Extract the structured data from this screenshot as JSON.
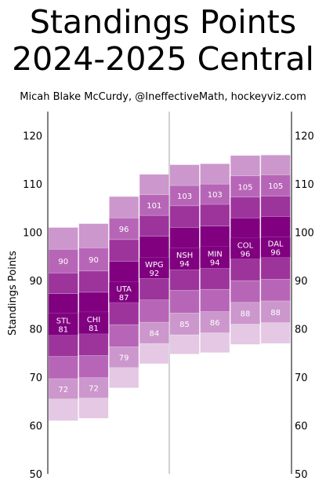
{
  "title_line1": "Standings Points",
  "title_line2": "2024-2025 Central",
  "subtitle": "Micah Blake McCurdy, @IneffectiveMath, hockeyviz.com",
  "chart_data": {
    "type": "bar",
    "ylabel": "Standings Points",
    "ylim": [
      50,
      125
    ],
    "yticks": [
      50,
      60,
      70,
      80,
      90,
      100,
      110,
      120
    ],
    "colors": {
      "band_outer": "#e4c8e4",
      "band_2": "#cc97cc",
      "band_3": "#b766b7",
      "band_4": "#9c349c",
      "median": "#800080",
      "divider": "#d0d0d0"
    },
    "teams": [
      {
        "team": "STL",
        "median": 81,
        "p10": 72,
        "p90": 90,
        "bands": [
          61,
          65.5,
          69.7,
          74.3,
          78.7,
          83.3,
          87.3,
          91.6,
          96.5,
          101
        ]
      },
      {
        "team": "CHI",
        "median": 81,
        "p10": 72,
        "p90": 90,
        "bands": [
          61.5,
          65.7,
          69.9,
          74.5,
          79,
          83.5,
          87.6,
          92,
          96.8,
          101.8
        ]
      },
      {
        "team": "UTA",
        "median": 87,
        "p10": 79,
        "p90": 96,
        "bands": [
          67.8,
          72,
          76.3,
          80.9,
          85.5,
          89.7,
          94,
          98.5,
          103,
          107.4
        ]
      },
      {
        "team": "WPG",
        "median": 92,
        "p10": 84,
        "p90": 101,
        "bands": [
          72.8,
          77,
          81.4,
          86,
          90.5,
          94.8,
          99.2,
          103.5,
          107.8,
          112
        ]
      },
      {
        "team": "NSH",
        "median": 94,
        "p10": 85,
        "p90": 103,
        "bands": [
          74.8,
          78.8,
          83.3,
          88,
          92.3,
          96.8,
          101,
          105.5,
          109.7,
          114
        ]
      },
      {
        "team": "MIN",
        "median": 94,
        "p10": 86,
        "p90": 103,
        "bands": [
          75.1,
          79.2,
          83.6,
          88.2,
          92.6,
          97.1,
          101.3,
          105.8,
          110,
          114.2
        ]
      },
      {
        "team": "COL",
        "median": 96,
        "p10": 88,
        "p90": 105,
        "bands": [
          76.8,
          81,
          85.5,
          90,
          94.5,
          98.8,
          103,
          107.3,
          111.7,
          115.9
        ]
      },
      {
        "team": "DAL",
        "median": 96,
        "p10": 88,
        "p90": 105,
        "bands": [
          77,
          81.3,
          85.8,
          90.3,
          94.8,
          99,
          103.3,
          107.5,
          111.9,
          116
        ]
      }
    ]
  }
}
